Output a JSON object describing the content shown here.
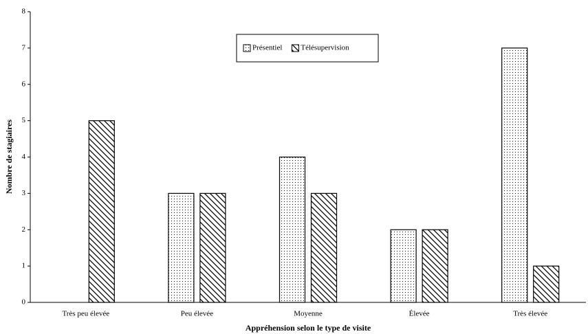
{
  "chart_data": {
    "type": "bar",
    "x_label": "Appréhension selon le type de visite",
    "y_label": "Nombre de stagiaires",
    "categories": [
      "Très peu élevée",
      "Peu élevée",
      "Moyenne",
      "Élevée",
      "Très élevée"
    ],
    "series": [
      {
        "name": "Présentiel",
        "color": "#000000",
        "pattern": "dots",
        "values": [
          0,
          3,
          4,
          2,
          7
        ]
      },
      {
        "name": "Télésupervision",
        "color": "#000000",
        "pattern": "hatch",
        "values": [
          5,
          3,
          3,
          2,
          1
        ]
      }
    ],
    "ylim": [
      0,
      8
    ],
    "yticks": [
      0,
      1,
      2,
      3,
      4,
      5,
      6,
      7,
      8
    ],
    "grid": false,
    "legend": "top"
  }
}
